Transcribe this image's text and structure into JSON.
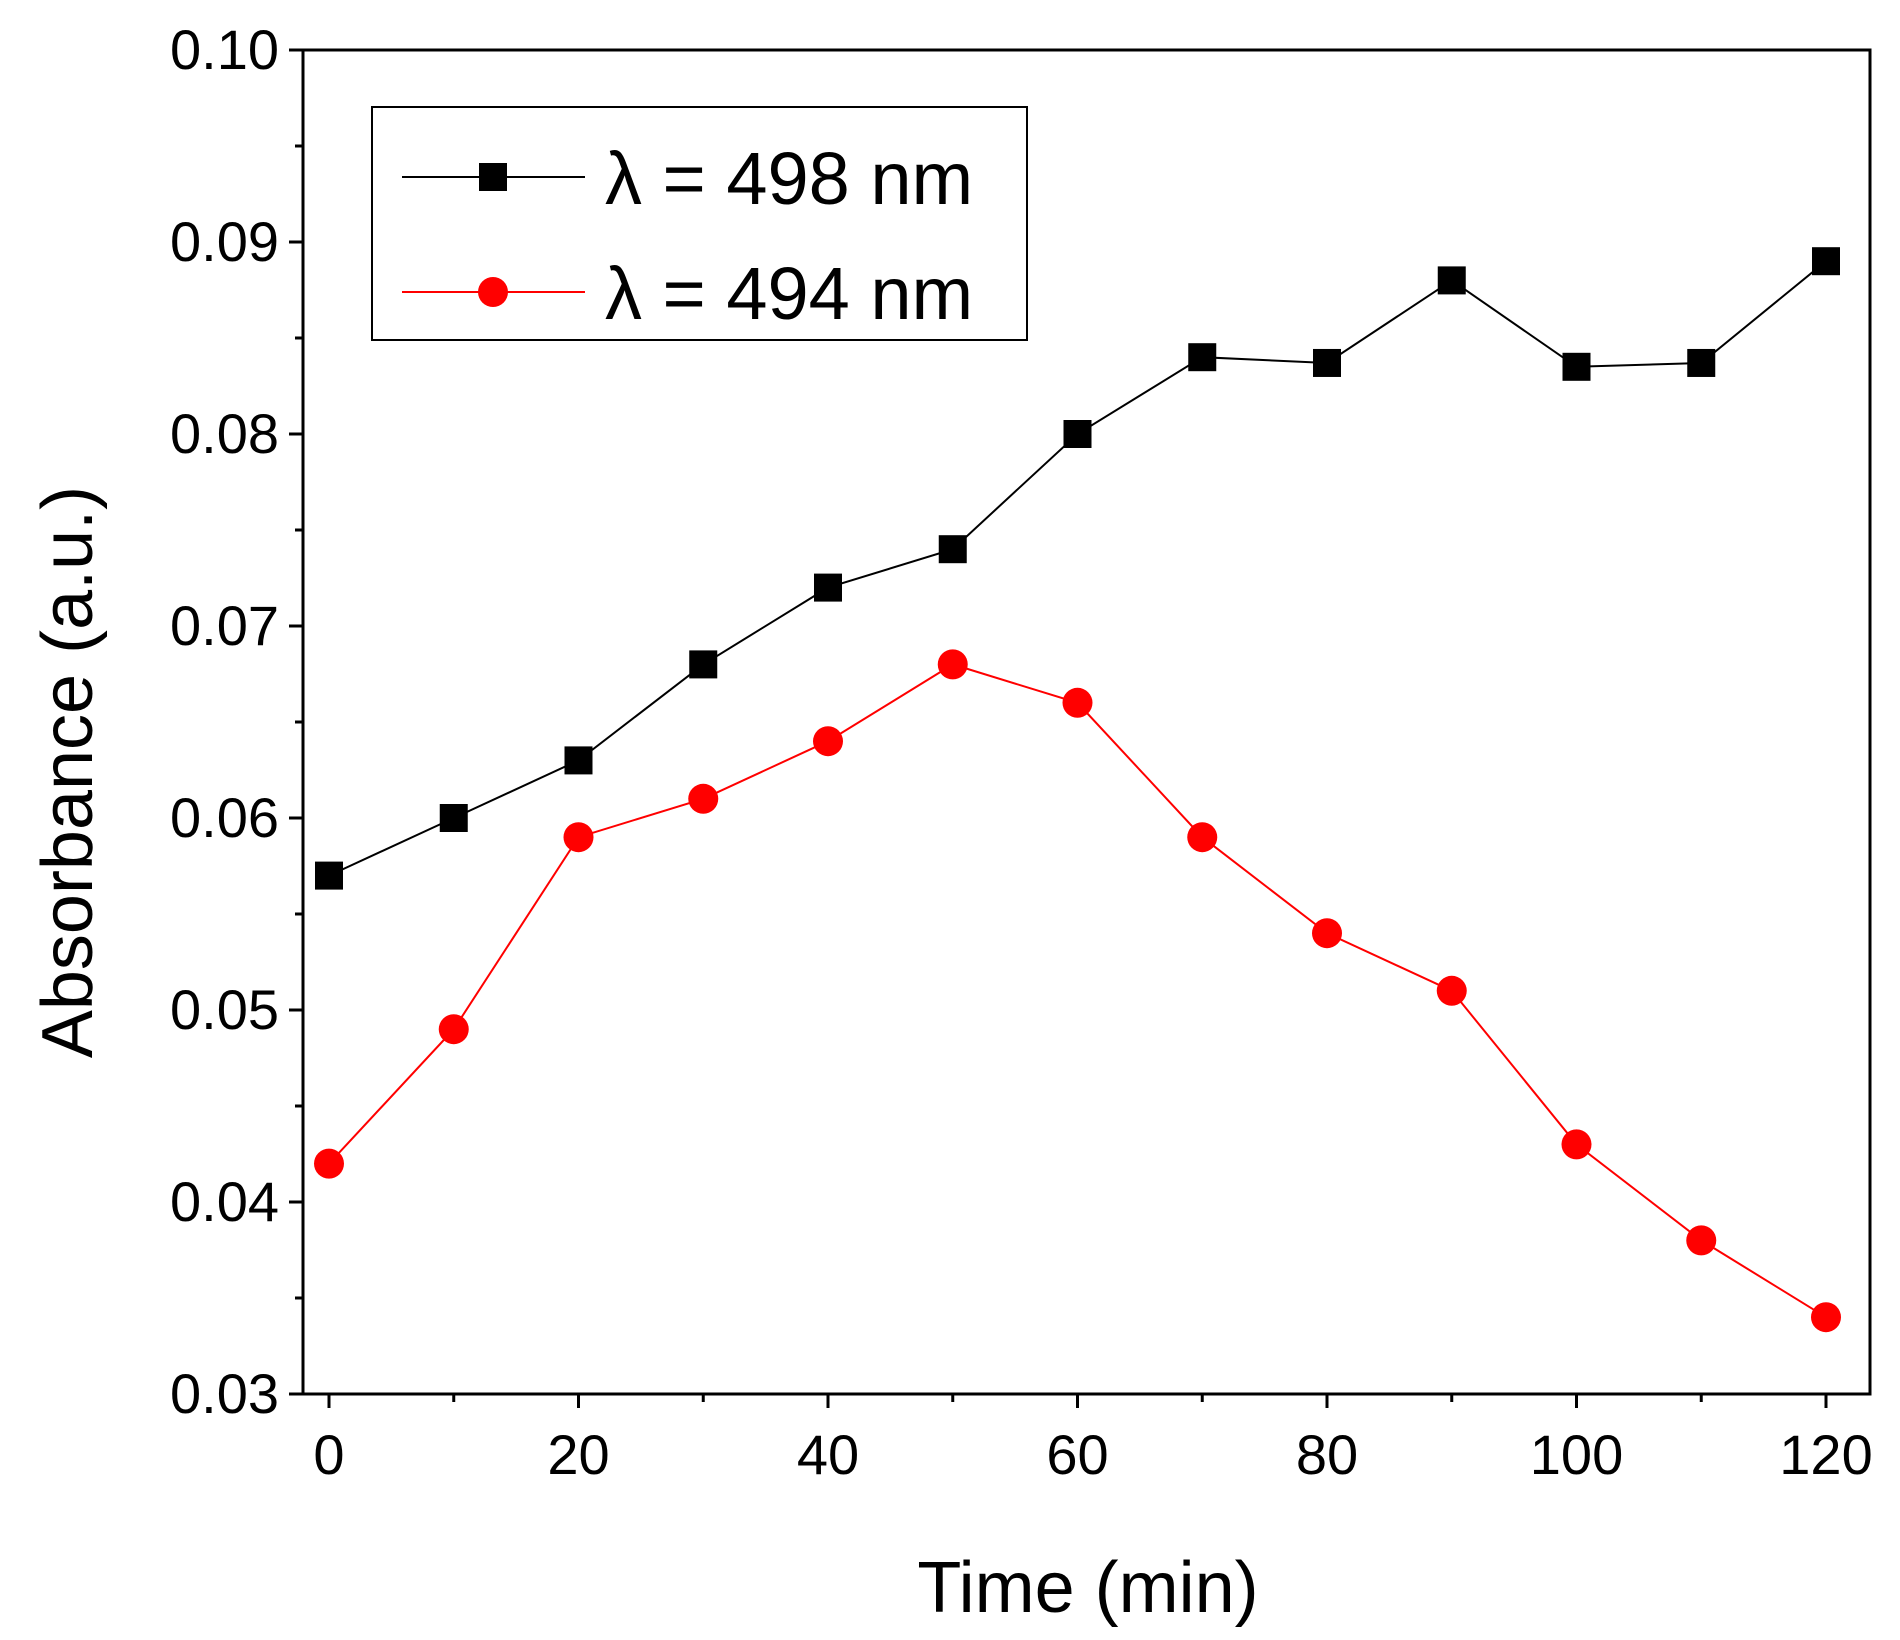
{
  "chart_data": {
    "type": "line",
    "title": "",
    "xlabel": "Time (min)",
    "ylabel": "Absorbance (a.u.)",
    "xlim": [
      0,
      120
    ],
    "ylim": [
      0.03,
      0.1
    ],
    "x_ticks": [
      0,
      20,
      40,
      60,
      80,
      100,
      120
    ],
    "x_tick_labels": [
      "0",
      "20",
      "40",
      "60",
      "80",
      "100",
      "120"
    ],
    "y_ticks": [
      0.03,
      0.04,
      0.05,
      0.06,
      0.07,
      0.08,
      0.09,
      0.1
    ],
    "y_tick_labels": [
      "0.03",
      "0.04",
      "0.05",
      "0.06",
      "0.07",
      "0.08",
      "0.09",
      "0.10"
    ],
    "grid": false,
    "legend_position": "top-left",
    "x": [
      0,
      10,
      20,
      30,
      40,
      50,
      60,
      70,
      80,
      90,
      100,
      110,
      120
    ],
    "series": [
      {
        "name": "λ = 498 nm",
        "color": "#000000",
        "marker": "square",
        "values": [
          0.057,
          0.06,
          0.063,
          0.068,
          0.072,
          0.074,
          0.08,
          0.084,
          0.0837,
          0.088,
          0.0835,
          0.0837,
          0.089
        ]
      },
      {
        "name": "λ = 494 nm",
        "color": "#ff0000",
        "marker": "circle",
        "values": [
          0.042,
          0.049,
          0.059,
          0.061,
          0.064,
          0.068,
          0.066,
          0.059,
          0.054,
          0.051,
          0.043,
          0.038,
          0.034
        ]
      }
    ]
  }
}
